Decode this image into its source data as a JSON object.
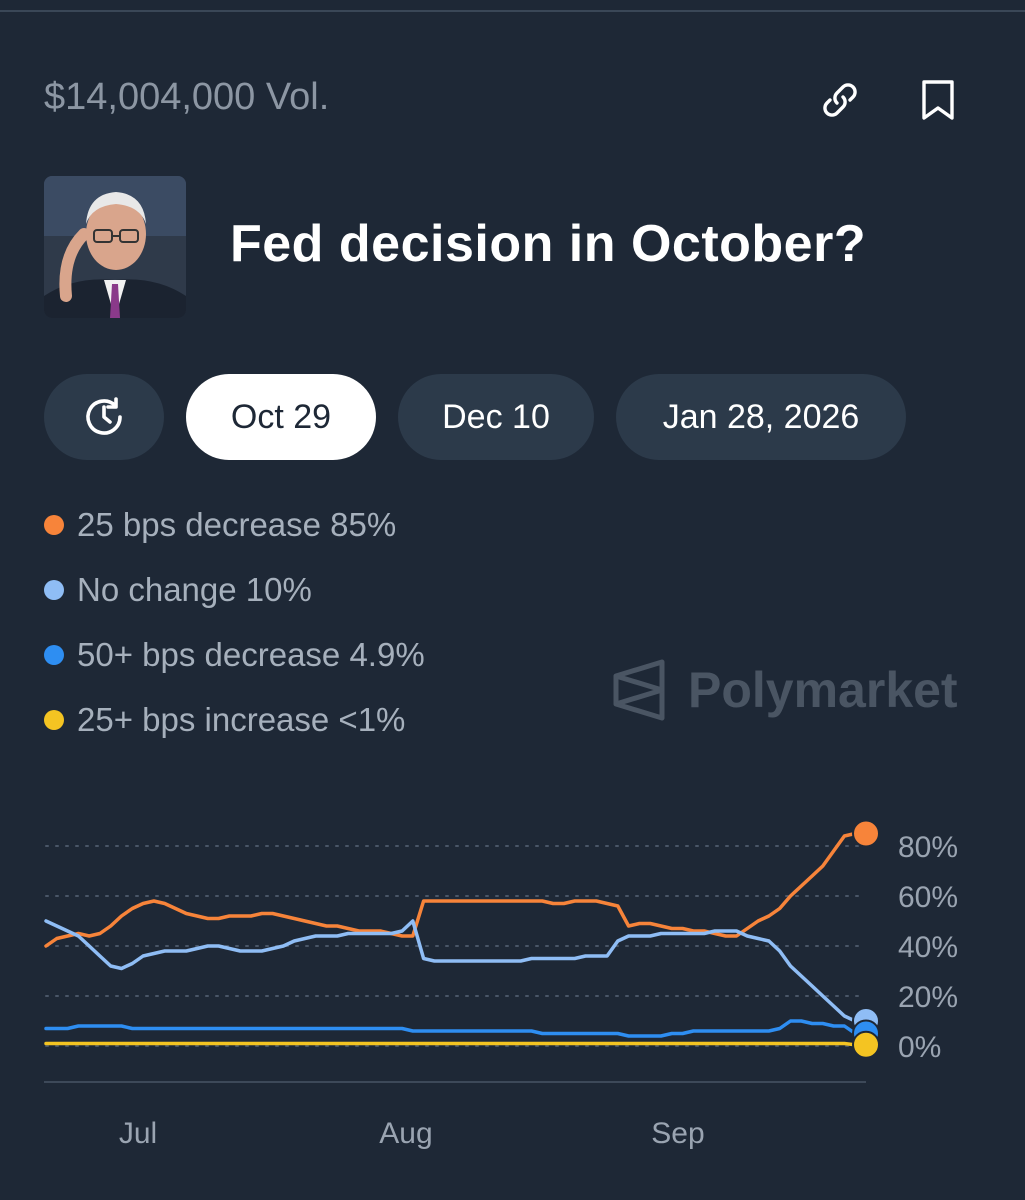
{
  "header": {
    "volume": "$14,004,000 Vol.",
    "link_icon": "link-icon",
    "bookmark_icon": "bookmark-icon"
  },
  "market": {
    "title": "Fed decision in October?",
    "avatar": "portrait-photo"
  },
  "tabs": [
    {
      "label": "",
      "icon": "history-clock-icon",
      "active": false
    },
    {
      "label": "Oct 29",
      "active": true
    },
    {
      "label": "Dec 10",
      "active": false
    },
    {
      "label": "Jan 28, 2026",
      "active": false
    }
  ],
  "legend": [
    {
      "label": "25 bps decrease 85%",
      "color": "#f7843a"
    },
    {
      "label": "No change 10%",
      "color": "#8fbdf5"
    },
    {
      "label": "50+ bps decrease 4.9%",
      "color": "#2e8ef2"
    },
    {
      "label": "25+ bps increase <1%",
      "color": "#f4c422"
    }
  ],
  "watermark": "Polymarket",
  "chart_data": {
    "type": "line",
    "x_ticks": [
      "Jul",
      "Aug",
      "Sep"
    ],
    "y_ticks": [
      "80%",
      "60%",
      "40%",
      "20%",
      "0%"
    ],
    "ylim": [
      0,
      85
    ],
    "grid": true,
    "series": [
      {
        "name": "25 bps decrease",
        "color": "#f7843a",
        "values": [
          40,
          43,
          44,
          45,
          44,
          45,
          48,
          52,
          55,
          57,
          58,
          57,
          55,
          53,
          52,
          51,
          51,
          52,
          52,
          52,
          53,
          53,
          52,
          51,
          50,
          49,
          48,
          48,
          47,
          46,
          46,
          46,
          45,
          44,
          44,
          58,
          58,
          58,
          58,
          58,
          58,
          58,
          58,
          58,
          58,
          58,
          58,
          57,
          57,
          58,
          58,
          58,
          57,
          56,
          48,
          49,
          49,
          48,
          47,
          47,
          46,
          46,
          45,
          44,
          44,
          47,
          50,
          52,
          55,
          60,
          64,
          68,
          72,
          78,
          84,
          85,
          85
        ]
      },
      {
        "name": "No change",
        "color": "#8fbdf5",
        "values": [
          50,
          48,
          46,
          44,
          40,
          36,
          32,
          31,
          33,
          36,
          37,
          38,
          38,
          38,
          39,
          40,
          40,
          39,
          38,
          38,
          38,
          39,
          40,
          42,
          43,
          44,
          44,
          44,
          45,
          45,
          45,
          45,
          45,
          46,
          50,
          35,
          34,
          34,
          34,
          34,
          34,
          34,
          34,
          34,
          34,
          35,
          35,
          35,
          35,
          35,
          36,
          36,
          36,
          42,
          44,
          44,
          44,
          45,
          45,
          45,
          45,
          45,
          46,
          46,
          46,
          44,
          43,
          42,
          38,
          32,
          28,
          24,
          20,
          16,
          12,
          10,
          10
        ]
      },
      {
        "name": "50+ bps decrease",
        "color": "#2e8ef2",
        "values": [
          7,
          7,
          7,
          8,
          8,
          8,
          8,
          8,
          7,
          7,
          7,
          7,
          7,
          7,
          7,
          7,
          7,
          7,
          7,
          7,
          7,
          7,
          7,
          7,
          7,
          7,
          7,
          7,
          7,
          7,
          7,
          7,
          7,
          7,
          6,
          6,
          6,
          6,
          6,
          6,
          6,
          6,
          6,
          6,
          6,
          6,
          5,
          5,
          5,
          5,
          5,
          5,
          5,
          5,
          4,
          4,
          4,
          4,
          5,
          5,
          6,
          6,
          6,
          6,
          6,
          6,
          6,
          6,
          7,
          10,
          10,
          9,
          9,
          8,
          8,
          5,
          5
        ]
      },
      {
        "name": "25+ bps increase",
        "color": "#f4c422",
        "values": [
          1,
          1,
          1,
          1,
          1,
          1,
          1,
          1,
          1,
          1,
          1,
          1,
          1,
          1,
          1,
          1,
          1,
          1,
          1,
          1,
          1,
          1,
          1,
          1,
          1,
          1,
          1,
          1,
          1,
          1,
          1,
          1,
          1,
          1,
          1,
          1,
          1,
          1,
          1,
          1,
          1,
          1,
          1,
          1,
          1,
          1,
          1,
          1,
          1,
          1,
          1,
          1,
          1,
          1,
          1,
          1,
          1,
          1,
          1,
          1,
          1,
          1,
          1,
          1,
          1,
          1,
          1,
          1,
          1,
          1,
          1,
          1,
          1,
          1,
          1,
          0.5,
          0.5
        ]
      }
    ]
  }
}
